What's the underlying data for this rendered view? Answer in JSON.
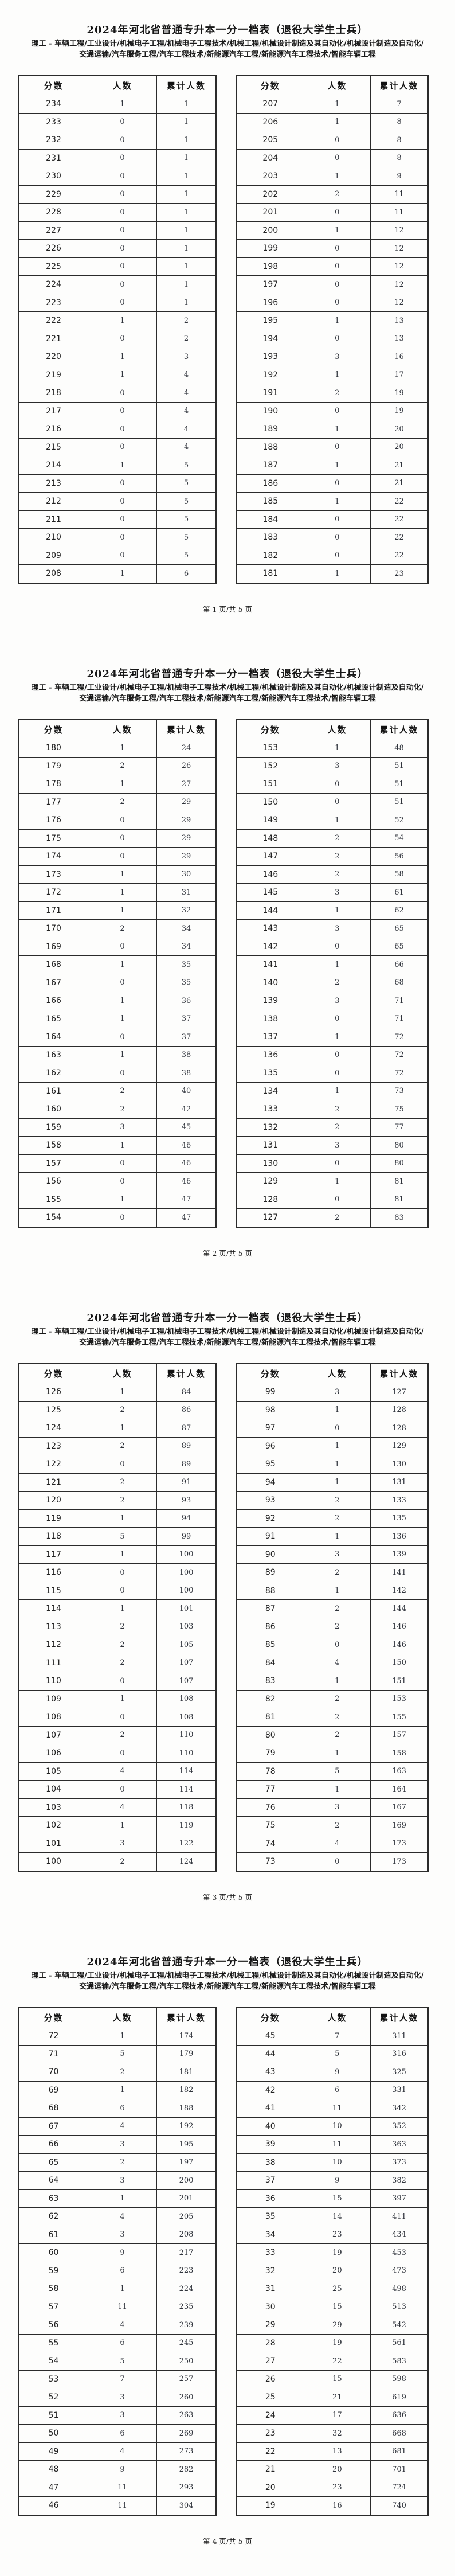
{
  "document": {
    "title": "2024年河北省普通专升本一分一档表（退役大学生士兵）",
    "subtitle": "理工 - 车辆工程/工业设计/机械电子工程/机械电子工程技术/机械工程/机械设计制造及其自动化/机械设计制造及自动化/交通运输/汽车服务工程/汽车工程技术/新能源汽车工程/新能源汽车工程技术/智能车辆工程",
    "columns": [
      "分数",
      "人数",
      "累计人数"
    ],
    "pages": [
      {
        "footer": "第 1 页/共 5 页",
        "left_rows": [
          [
            234,
            1,
            1
          ],
          [
            233,
            0,
            1
          ],
          [
            232,
            0,
            1
          ],
          [
            231,
            0,
            1
          ],
          [
            230,
            0,
            1
          ],
          [
            229,
            0,
            1
          ],
          [
            228,
            0,
            1
          ],
          [
            227,
            0,
            1
          ],
          [
            226,
            0,
            1
          ],
          [
            225,
            0,
            1
          ],
          [
            224,
            0,
            1
          ],
          [
            223,
            0,
            1
          ],
          [
            222,
            1,
            2
          ],
          [
            221,
            0,
            2
          ],
          [
            220,
            1,
            3
          ],
          [
            219,
            1,
            4
          ],
          [
            218,
            0,
            4
          ],
          [
            217,
            0,
            4
          ],
          [
            216,
            0,
            4
          ],
          [
            215,
            0,
            4
          ],
          [
            214,
            1,
            5
          ],
          [
            213,
            0,
            5
          ],
          [
            212,
            0,
            5
          ],
          [
            211,
            0,
            5
          ],
          [
            210,
            0,
            5
          ],
          [
            209,
            0,
            5
          ],
          [
            208,
            1,
            6
          ]
        ],
        "right_rows": [
          [
            207,
            1,
            7
          ],
          [
            206,
            1,
            8
          ],
          [
            205,
            0,
            8
          ],
          [
            204,
            0,
            8
          ],
          [
            203,
            1,
            9
          ],
          [
            202,
            2,
            11
          ],
          [
            201,
            0,
            11
          ],
          [
            200,
            1,
            12
          ],
          [
            199,
            0,
            12
          ],
          [
            198,
            0,
            12
          ],
          [
            197,
            0,
            12
          ],
          [
            196,
            0,
            12
          ],
          [
            195,
            1,
            13
          ],
          [
            194,
            0,
            13
          ],
          [
            193,
            3,
            16
          ],
          [
            192,
            1,
            17
          ],
          [
            191,
            2,
            19
          ],
          [
            190,
            0,
            19
          ],
          [
            189,
            1,
            20
          ],
          [
            188,
            0,
            20
          ],
          [
            187,
            1,
            21
          ],
          [
            186,
            0,
            21
          ],
          [
            185,
            1,
            22
          ],
          [
            184,
            0,
            22
          ],
          [
            183,
            0,
            22
          ],
          [
            182,
            0,
            22
          ],
          [
            181,
            1,
            23
          ]
        ]
      },
      {
        "footer": "第 2 页/共 5 页",
        "left_rows": [
          [
            180,
            1,
            24
          ],
          [
            179,
            2,
            26
          ],
          [
            178,
            1,
            27
          ],
          [
            177,
            2,
            29
          ],
          [
            176,
            0,
            29
          ],
          [
            175,
            0,
            29
          ],
          [
            174,
            0,
            29
          ],
          [
            173,
            1,
            30
          ],
          [
            172,
            1,
            31
          ],
          [
            171,
            1,
            32
          ],
          [
            170,
            2,
            34
          ],
          [
            169,
            0,
            34
          ],
          [
            168,
            1,
            35
          ],
          [
            167,
            0,
            35
          ],
          [
            166,
            1,
            36
          ],
          [
            165,
            1,
            37
          ],
          [
            164,
            0,
            37
          ],
          [
            163,
            1,
            38
          ],
          [
            162,
            0,
            38
          ],
          [
            161,
            2,
            40
          ],
          [
            160,
            2,
            42
          ],
          [
            159,
            3,
            45
          ],
          [
            158,
            1,
            46
          ],
          [
            157,
            0,
            46
          ],
          [
            156,
            0,
            46
          ],
          [
            155,
            1,
            47
          ],
          [
            154,
            0,
            47
          ]
        ],
        "right_rows": [
          [
            153,
            1,
            48
          ],
          [
            152,
            3,
            51
          ],
          [
            151,
            0,
            51
          ],
          [
            150,
            0,
            51
          ],
          [
            149,
            1,
            52
          ],
          [
            148,
            2,
            54
          ],
          [
            147,
            2,
            56
          ],
          [
            146,
            2,
            58
          ],
          [
            145,
            3,
            61
          ],
          [
            144,
            1,
            62
          ],
          [
            143,
            3,
            65
          ],
          [
            142,
            0,
            65
          ],
          [
            141,
            1,
            66
          ],
          [
            140,
            2,
            68
          ],
          [
            139,
            3,
            71
          ],
          [
            138,
            0,
            71
          ],
          [
            137,
            1,
            72
          ],
          [
            136,
            0,
            72
          ],
          [
            135,
            0,
            72
          ],
          [
            134,
            1,
            73
          ],
          [
            133,
            2,
            75
          ],
          [
            132,
            2,
            77
          ],
          [
            131,
            3,
            80
          ],
          [
            130,
            0,
            80
          ],
          [
            129,
            1,
            81
          ],
          [
            128,
            0,
            81
          ],
          [
            127,
            2,
            83
          ]
        ]
      },
      {
        "footer": "第 3 页/共 5 页",
        "left_rows": [
          [
            126,
            1,
            84
          ],
          [
            125,
            2,
            86
          ],
          [
            124,
            1,
            87
          ],
          [
            123,
            2,
            89
          ],
          [
            122,
            0,
            89
          ],
          [
            121,
            2,
            91
          ],
          [
            120,
            2,
            93
          ],
          [
            119,
            1,
            94
          ],
          [
            118,
            5,
            99
          ],
          [
            117,
            1,
            100
          ],
          [
            116,
            0,
            100
          ],
          [
            115,
            0,
            100
          ],
          [
            114,
            1,
            101
          ],
          [
            113,
            2,
            103
          ],
          [
            112,
            2,
            105
          ],
          [
            111,
            2,
            107
          ],
          [
            110,
            0,
            107
          ],
          [
            109,
            1,
            108
          ],
          [
            108,
            0,
            108
          ],
          [
            107,
            2,
            110
          ],
          [
            106,
            0,
            110
          ],
          [
            105,
            4,
            114
          ],
          [
            104,
            0,
            114
          ],
          [
            103,
            4,
            118
          ],
          [
            102,
            1,
            119
          ],
          [
            101,
            3,
            122
          ],
          [
            100,
            2,
            124
          ]
        ],
        "right_rows": [
          [
            99,
            3,
            127
          ],
          [
            98,
            1,
            128
          ],
          [
            97,
            0,
            128
          ],
          [
            96,
            1,
            129
          ],
          [
            95,
            1,
            130
          ],
          [
            94,
            1,
            131
          ],
          [
            93,
            2,
            133
          ],
          [
            92,
            2,
            135
          ],
          [
            91,
            1,
            136
          ],
          [
            90,
            3,
            139
          ],
          [
            89,
            2,
            141
          ],
          [
            88,
            1,
            142
          ],
          [
            87,
            2,
            144
          ],
          [
            86,
            2,
            146
          ],
          [
            85,
            0,
            146
          ],
          [
            84,
            4,
            150
          ],
          [
            83,
            1,
            151
          ],
          [
            82,
            2,
            153
          ],
          [
            81,
            2,
            155
          ],
          [
            80,
            2,
            157
          ],
          [
            79,
            1,
            158
          ],
          [
            78,
            5,
            163
          ],
          [
            77,
            1,
            164
          ],
          [
            76,
            3,
            167
          ],
          [
            75,
            2,
            169
          ],
          [
            74,
            4,
            173
          ],
          [
            73,
            0,
            173
          ]
        ]
      },
      {
        "footer": "第 4 页/共 5 页",
        "left_rows": [
          [
            72,
            1,
            174
          ],
          [
            71,
            5,
            179
          ],
          [
            70,
            2,
            181
          ],
          [
            69,
            1,
            182
          ],
          [
            68,
            6,
            188
          ],
          [
            67,
            4,
            192
          ],
          [
            66,
            3,
            195
          ],
          [
            65,
            2,
            197
          ],
          [
            64,
            3,
            200
          ],
          [
            63,
            1,
            201
          ],
          [
            62,
            4,
            205
          ],
          [
            61,
            3,
            208
          ],
          [
            60,
            9,
            217
          ],
          [
            59,
            6,
            223
          ],
          [
            58,
            1,
            224
          ],
          [
            57,
            11,
            235
          ],
          [
            56,
            4,
            239
          ],
          [
            55,
            6,
            245
          ],
          [
            54,
            5,
            250
          ],
          [
            53,
            7,
            257
          ],
          [
            52,
            3,
            260
          ],
          [
            51,
            3,
            263
          ],
          [
            50,
            6,
            269
          ],
          [
            49,
            4,
            273
          ],
          [
            48,
            9,
            282
          ],
          [
            47,
            11,
            293
          ],
          [
            46,
            11,
            304
          ]
        ],
        "right_rows": [
          [
            45,
            7,
            311
          ],
          [
            44,
            5,
            316
          ],
          [
            43,
            9,
            325
          ],
          [
            42,
            6,
            331
          ],
          [
            41,
            11,
            342
          ],
          [
            40,
            10,
            352
          ],
          [
            39,
            11,
            363
          ],
          [
            38,
            10,
            373
          ],
          [
            37,
            9,
            382
          ],
          [
            36,
            15,
            397
          ],
          [
            35,
            14,
            411
          ],
          [
            34,
            23,
            434
          ],
          [
            33,
            19,
            453
          ],
          [
            32,
            20,
            473
          ],
          [
            31,
            25,
            498
          ],
          [
            30,
            15,
            513
          ],
          [
            29,
            29,
            542
          ],
          [
            28,
            19,
            561
          ],
          [
            27,
            22,
            583
          ],
          [
            26,
            15,
            598
          ],
          [
            25,
            21,
            619
          ],
          [
            24,
            17,
            636
          ],
          [
            23,
            32,
            668
          ],
          [
            22,
            13,
            681
          ],
          [
            21,
            20,
            701
          ],
          [
            20,
            23,
            724
          ],
          [
            19,
            16,
            740
          ]
        ]
      }
    ]
  }
}
